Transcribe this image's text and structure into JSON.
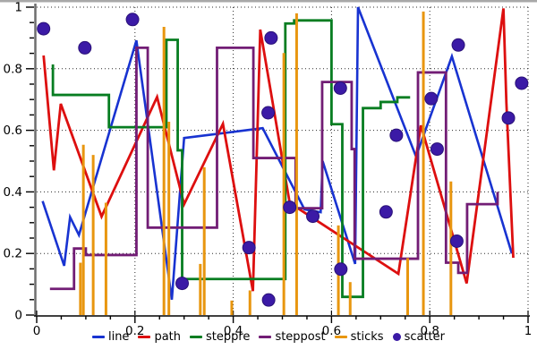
{
  "figure": {
    "background": "#ffffff",
    "top_strip_color": "#a8a8a8",
    "frame_color": "#6e6e6e",
    "axis_color": "#000000",
    "grid_color": "#2a2a2a"
  },
  "axes": {
    "x": {
      "range": [
        0,
        1
      ],
      "tick_values": [
        0,
        0.2,
        0.4,
        0.6,
        0.8,
        1
      ],
      "tick_labels": [
        "0",
        "0.2",
        "0.4",
        "0.6",
        "0.8",
        "1"
      ],
      "minor_step": 0.05
    },
    "y": {
      "range": [
        0,
        1
      ],
      "tick_values": [
        0,
        0.2,
        0.4,
        0.6,
        0.8,
        1
      ],
      "tick_labels": [
        "0",
        "0.2",
        "0.4",
        "0.6",
        "0.8",
        "1"
      ],
      "minor_step": 0.05
    }
  },
  "legend": {
    "position": "bottom-center",
    "items": [
      {
        "label": "line",
        "color": "#1833d1",
        "marker": "dash"
      },
      {
        "label": "path",
        "color": "#dd0f0f",
        "marker": "dash"
      },
      {
        "label": "steppre",
        "color": "#077d21",
        "marker": "dash"
      },
      {
        "label": "steppost",
        "color": "#721d75",
        "marker": "dash"
      },
      {
        "label": "sticks",
        "color": "#e8960f",
        "marker": "dash"
      },
      {
        "label": "scatter",
        "color": "#3b1aa6",
        "marker": "dot"
      }
    ]
  },
  "chart_data": {
    "type": "line",
    "title": "",
    "xlabel": "",
    "ylabel": "",
    "xlim": [
      0,
      1
    ],
    "ylim": [
      0,
      1
    ],
    "grid": "dotted",
    "series": [
      {
        "name": "line",
        "style": "line",
        "color": "#1833d1",
        "width": 2.6,
        "points": [
          [
            0.012,
            0.37
          ],
          [
            0.056,
            0.16
          ],
          [
            0.068,
            0.318
          ],
          [
            0.086,
            0.26
          ],
          [
            0.203,
            0.892
          ],
          [
            0.275,
            0.05
          ],
          [
            0.3,
            0.575
          ],
          [
            0.46,
            0.607
          ],
          [
            0.545,
            0.343
          ],
          [
            0.578,
            0.334
          ],
          [
            0.582,
            0.5
          ],
          [
            0.648,
            0.166
          ],
          [
            0.654,
            1.0
          ],
          [
            0.772,
            0.515
          ],
          [
            0.845,
            0.84
          ],
          [
            0.967,
            0.2
          ]
        ]
      },
      {
        "name": "path",
        "style": "path",
        "color": "#dd0f0f",
        "width": 2.8,
        "points": [
          [
            0.014,
            0.843
          ],
          [
            0.035,
            0.47
          ],
          [
            0.049,
            0.686
          ],
          [
            0.132,
            0.32
          ],
          [
            0.245,
            0.708
          ],
          [
            0.3,
            0.36
          ],
          [
            0.379,
            0.621
          ],
          [
            0.44,
            0.078
          ],
          [
            0.455,
            0.927
          ],
          [
            0.515,
            0.364
          ],
          [
            0.736,
            0.134
          ],
          [
            0.782,
            0.616
          ],
          [
            0.875,
            0.103
          ],
          [
            0.95,
            0.996
          ],
          [
            0.956,
            0.689
          ],
          [
            0.97,
            0.186
          ]
        ]
      },
      {
        "name": "steppre",
        "style": "steppre",
        "color": "#077d21",
        "width": 2.8,
        "points": [
          [
            0.033,
            0.814
          ],
          [
            0.147,
            0.715
          ],
          [
            0.264,
            0.61
          ],
          [
            0.287,
            0.894
          ],
          [
            0.296,
            0.535
          ],
          [
            0.506,
            0.117
          ],
          [
            0.524,
            0.947
          ],
          [
            0.6,
            0.957
          ],
          [
            0.622,
            0.62
          ],
          [
            0.664,
            0.059
          ],
          [
            0.7,
            0.672
          ],
          [
            0.734,
            0.692
          ],
          [
            0.76,
            0.707
          ]
        ]
      },
      {
        "name": "steppost",
        "style": "steppost",
        "color": "#721d75",
        "width": 2.8,
        "points": [
          [
            0.027,
            0.085
          ],
          [
            0.076,
            0.216
          ],
          [
            0.1,
            0.195
          ],
          [
            0.203,
            0.868
          ],
          [
            0.226,
            0.284
          ],
          [
            0.367,
            0.868
          ],
          [
            0.441,
            0.51
          ],
          [
            0.527,
            0.347
          ],
          [
            0.581,
            0.757
          ],
          [
            0.641,
            0.539
          ],
          [
            0.647,
            0.183
          ],
          [
            0.682,
            0.183
          ],
          [
            0.776,
            0.788
          ],
          [
            0.833,
            0.17
          ],
          [
            0.858,
            0.137
          ],
          [
            0.876,
            0.36
          ],
          [
            0.938,
            0.4
          ]
        ]
      },
      {
        "name": "sticks",
        "style": "sticks",
        "color": "#e8960f",
        "width": 3,
        "points": [
          [
            0.089,
            0.17
          ],
          [
            0.095,
            0.553
          ],
          [
            0.115,
            0.52
          ],
          [
            0.141,
            0.365
          ],
          [
            0.259,
            0.936
          ],
          [
            0.269,
            0.628
          ],
          [
            0.333,
            0.166
          ],
          [
            0.341,
            0.48
          ],
          [
            0.397,
            0.047
          ],
          [
            0.434,
            0.08
          ],
          [
            0.503,
            0.851
          ],
          [
            0.529,
            0.98
          ],
          [
            0.614,
            0.291
          ],
          [
            0.638,
            0.107
          ],
          [
            0.755,
            0.185
          ],
          [
            0.787,
            0.986
          ],
          [
            0.843,
            0.434
          ]
        ]
      },
      {
        "name": "scatter",
        "style": "scatter",
        "color": "#3b1aa6",
        "radius": 7,
        "points": [
          [
            0.014,
            0.93
          ],
          [
            0.098,
            0.868
          ],
          [
            0.195,
            0.96
          ],
          [
            0.296,
            0.103
          ],
          [
            0.432,
            0.219
          ],
          [
            0.471,
            0.657
          ],
          [
            0.472,
            0.049
          ],
          [
            0.477,
            0.9
          ],
          [
            0.515,
            0.35
          ],
          [
            0.562,
            0.321
          ],
          [
            0.618,
            0.737
          ],
          [
            0.619,
            0.149
          ],
          [
            0.711,
            0.335
          ],
          [
            0.732,
            0.584
          ],
          [
            0.803,
            0.703
          ],
          [
            0.815,
            0.539
          ],
          [
            0.855,
            0.24
          ],
          [
            0.858,
            0.877
          ],
          [
            0.96,
            0.64
          ],
          [
            0.987,
            0.753
          ]
        ]
      }
    ]
  }
}
